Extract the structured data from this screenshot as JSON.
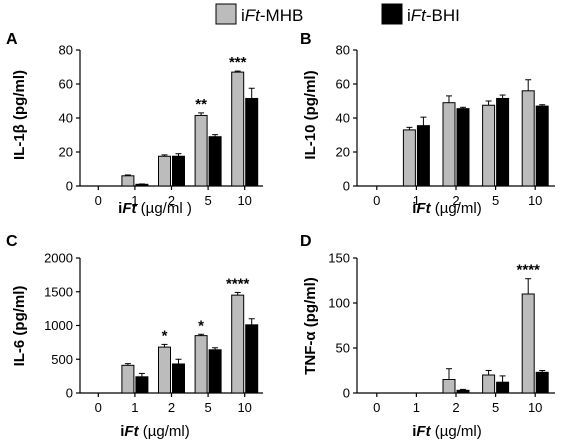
{
  "legend": [
    {
      "prefix": "i",
      "italic": "Ft",
      "suffix": "-MHB",
      "color": "#bcbcbc"
    },
    {
      "prefix": "i",
      "italic": "Ft",
      "suffix": "-BHI",
      "color": "#000000"
    }
  ],
  "chart_data": [
    {
      "panel": "A",
      "type": "bar",
      "ylabel": "IL-1β (pg/ml)",
      "xlabel": {
        "prefix": "i",
        "italic": "Ft",
        "suffix": " (µg/ml )"
      },
      "categories": [
        "0",
        "1",
        "2",
        "5",
        "10"
      ],
      "ylim": [
        0,
        80
      ],
      "yticks": [
        0,
        20,
        40,
        60,
        80
      ],
      "series": [
        {
          "name": "iFt-MHB",
          "values": [
            0,
            6,
            17.5,
            41.5,
            67
          ],
          "errors": [
            0,
            0.5,
            0.8,
            1.5,
            0.6
          ]
        },
        {
          "name": "iFt-BHI",
          "values": [
            0,
            1,
            17.5,
            29,
            51.5
          ],
          "errors": [
            0,
            0.2,
            1.5,
            1.2,
            6
          ]
        }
      ],
      "annotations": [
        "",
        "",
        "",
        "**",
        "***"
      ]
    },
    {
      "panel": "B",
      "type": "bar",
      "ylabel": "IL-10 (pg/ml)",
      "xlabel": {
        "prefix": "i",
        "italic": "Ft",
        "suffix": " (µg/ml)"
      },
      "categories": [
        "0",
        "1",
        "2",
        "5",
        "10"
      ],
      "ylim": [
        0,
        80
      ],
      "yticks": [
        0,
        20,
        40,
        60,
        80
      ],
      "series": [
        {
          "name": "iFt-MHB",
          "values": [
            0,
            33,
            49,
            47.5,
            56
          ],
          "errors": [
            0,
            1.5,
            4,
            2.5,
            6.5
          ]
        },
        {
          "name": "iFt-BHI",
          "values": [
            0,
            35.5,
            45.5,
            51.5,
            47
          ],
          "errors": [
            0,
            5,
            0.8,
            2,
            0.8
          ]
        }
      ],
      "annotations": [
        "",
        "",
        "",
        "",
        ""
      ]
    },
    {
      "panel": "C",
      "type": "bar",
      "ylabel": "IL-6 (pg/ml)",
      "xlabel": {
        "prefix": "i",
        "italic": "Ft",
        "suffix": " (µg/ml)"
      },
      "categories": [
        "0",
        "1",
        "2",
        "5",
        "10"
      ],
      "ylim": [
        0,
        2000
      ],
      "yticks": [
        0,
        500,
        1000,
        1500,
        2000
      ],
      "series": [
        {
          "name": "iFt-MHB",
          "values": [
            0,
            410,
            680,
            850,
            1450
          ],
          "errors": [
            0,
            25,
            40,
            20,
            40
          ]
        },
        {
          "name": "iFt-BHI",
          "values": [
            0,
            240,
            430,
            640,
            1010
          ],
          "errors": [
            0,
            50,
            70,
            30,
            90
          ]
        }
      ],
      "annotations": [
        "",
        "",
        "*",
        "*",
        "****"
      ]
    },
    {
      "panel": "D",
      "type": "bar",
      "ylabel": "TNF-α (pg/ml)",
      "xlabel": {
        "prefix": "i",
        "italic": "Ft",
        "suffix": " (µg/ml)"
      },
      "categories": [
        "0",
        "1",
        "2",
        "5",
        "10"
      ],
      "ylim": [
        0,
        150
      ],
      "yticks": [
        0,
        50,
        100,
        150
      ],
      "series": [
        {
          "name": "iFt-MHB",
          "values": [
            0,
            0,
            15,
            20,
            110
          ],
          "errors": [
            0,
            0,
            12,
            5,
            17
          ]
        },
        {
          "name": "iFt-BHI",
          "values": [
            0,
            0,
            3,
            12,
            23
          ],
          "errors": [
            0,
            0,
            1,
            7,
            2
          ]
        }
      ],
      "annotations": [
        "",
        "",
        "",
        "",
        "****"
      ]
    }
  ]
}
